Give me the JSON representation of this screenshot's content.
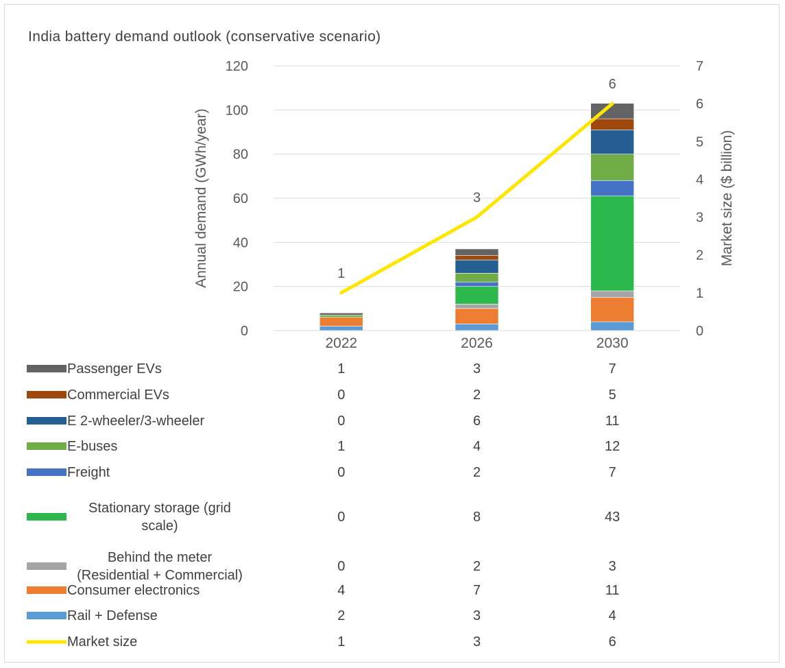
{
  "chart_data": {
    "type": "bar",
    "title": "India battery demand outlook (conservative scenario)",
    "categories": [
      "2022",
      "2026",
      "2030"
    ],
    "ylabel": "Annual demand (GWh/year)",
    "y2label": "Market size ($ billion)",
    "ylim": [
      0,
      120
    ],
    "y2lim": [
      0,
      7
    ],
    "yticks": [
      "0",
      "20",
      "40",
      "60",
      "80",
      "100",
      "120"
    ],
    "y2ticks": [
      "0",
      "1",
      "2",
      "3",
      "4",
      "5",
      "6",
      "7"
    ],
    "stacked": true,
    "grid": true,
    "legend_placement": "data-table",
    "series": [
      {
        "name": "Rail + Defense",
        "values": [
          2,
          3,
          4
        ],
        "color": "#5b9bd5"
      },
      {
        "name": "Consumer electronics",
        "values": [
          4,
          7,
          11
        ],
        "color": "#ed7d31"
      },
      {
        "name": "Behind the meter (Residential + Commercial)",
        "values": [
          0,
          2,
          3
        ],
        "color": "#a5a5a5"
      },
      {
        "name": "Stationary storage (grid scale)",
        "values": [
          0,
          8,
          43
        ],
        "color": "#2db84d"
      },
      {
        "name": "Freight",
        "values": [
          0,
          2,
          7
        ],
        "color": "#4472c4"
      },
      {
        "name": "E-buses",
        "values": [
          1,
          4,
          12
        ],
        "color": "#70ad47"
      },
      {
        "name": "E 2-wheeler/3-wheeler",
        "values": [
          0,
          6,
          11
        ],
        "color": "#255e91"
      },
      {
        "name": "Commercial EVs",
        "values": [
          0,
          2,
          5
        ],
        "color": "#9e480e"
      },
      {
        "name": "Passenger EVs",
        "values": [
          1,
          3,
          7
        ],
        "color": "#636363"
      }
    ],
    "line_series": {
      "name": "Market size",
      "values": [
        1,
        3,
        6
      ],
      "color": "#ffe600",
      "axis": "secondary",
      "labels": [
        "1",
        "3",
        "6"
      ]
    },
    "table_rows": [
      {
        "name": "Passenger EVs",
        "display": [
          "Passenger EVs"
        ],
        "values": [
          "1",
          "3",
          "7"
        ],
        "color": "#636363",
        "marker": "box"
      },
      {
        "name": "Commercial EVs",
        "display": [
          "Commercial EVs"
        ],
        "values": [
          "0",
          "2",
          "5"
        ],
        "color": "#9e480e",
        "marker": "box"
      },
      {
        "name": "E 2-wheeler/3-wheeler",
        "display": [
          "E 2-wheeler/3-wheeler"
        ],
        "values": [
          "0",
          "6",
          "11"
        ],
        "color": "#255e91",
        "marker": "box"
      },
      {
        "name": "E-buses",
        "display": [
          "E-buses"
        ],
        "values": [
          "1",
          "4",
          "12"
        ],
        "color": "#70ad47",
        "marker": "box"
      },
      {
        "name": "Freight",
        "display": [
          "Freight"
        ],
        "values": [
          "0",
          "2",
          "7"
        ],
        "color": "#4472c4",
        "marker": "box"
      },
      {
        "name": "Stationary storage (grid scale)",
        "display": [
          "Stationary storage (grid",
          "scale)"
        ],
        "values": [
          "0",
          "8",
          "43"
        ],
        "color": "#2db84d",
        "marker": "box"
      },
      {
        "name": "Behind the meter (Residential + Commercial)",
        "display": [
          "Behind the meter",
          "(Residential + Commercial)"
        ],
        "values": [
          "0",
          "2",
          "3"
        ],
        "color": "#a5a5a5",
        "marker": "box"
      },
      {
        "name": "Consumer electronics",
        "display": [
          "Consumer electronics"
        ],
        "values": [
          "4",
          "7",
          "11"
        ],
        "color": "#ed7d31",
        "marker": "box"
      },
      {
        "name": "Rail + Defense",
        "display": [
          "Rail + Defense"
        ],
        "values": [
          "2",
          "3",
          "4"
        ],
        "color": "#5b9bd5",
        "marker": "box"
      },
      {
        "name": "Market size",
        "display": [
          "Market size"
        ],
        "values": [
          "1",
          "3",
          "6"
        ],
        "color": "#ffe600",
        "marker": "line"
      }
    ]
  }
}
